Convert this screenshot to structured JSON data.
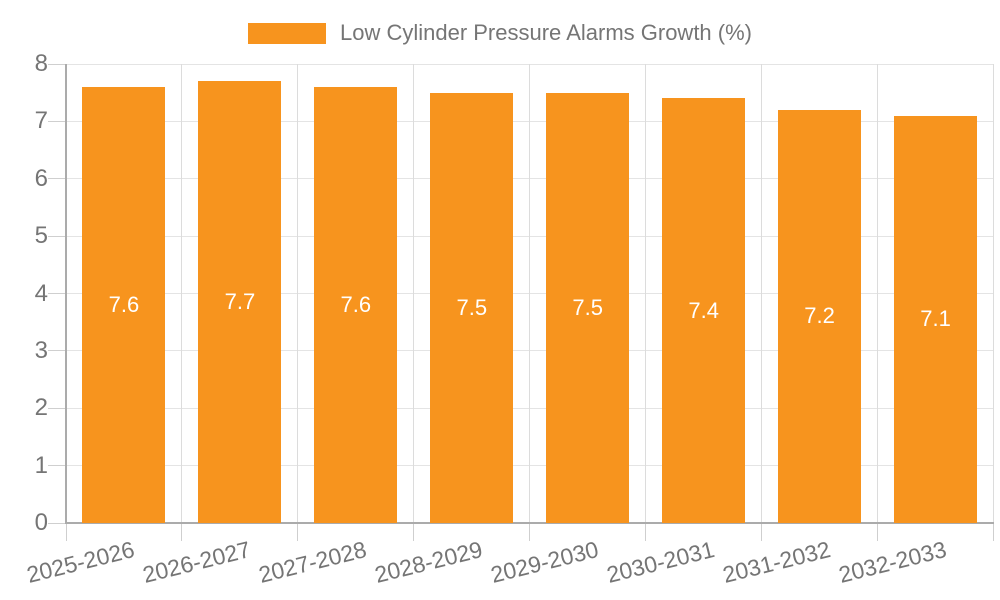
{
  "chart_data": {
    "type": "bar",
    "categories": [
      "2025-2026",
      "2026-2027",
      "2027-2028",
      "2028-2029",
      "2029-2030",
      "2030-2031",
      "2031-2032",
      "2032-2033"
    ],
    "series": [
      {
        "name": "Low Cylinder Pressure Alarms Growth (%)",
        "values": [
          7.6,
          7.7,
          7.6,
          7.5,
          7.5,
          7.4,
          7.2,
          7.1
        ]
      }
    ],
    "bar_value_labels": [
      "7.6",
      "7.7",
      "7.6",
      "7.5",
      "7.5",
      "7.4",
      "7.2",
      "7.1"
    ],
    "xlabel": "",
    "ylabel": "",
    "ylim": [
      0,
      8
    ],
    "yticks": [
      0,
      1,
      2,
      3,
      4,
      5,
      6,
      7,
      8
    ],
    "grid": true,
    "legend_position": "top-center",
    "x_tick_rotation_deg": -14
  },
  "colors": {
    "bar": "#F7941E",
    "bar_label_text": "#FFFFFF",
    "axis_line": "#ABABAB",
    "grid_line_h": "#E4E4E4",
    "grid_line_v": "#DCDCDC",
    "tick_line": "#CFCFCF",
    "label_text": "#757575"
  }
}
